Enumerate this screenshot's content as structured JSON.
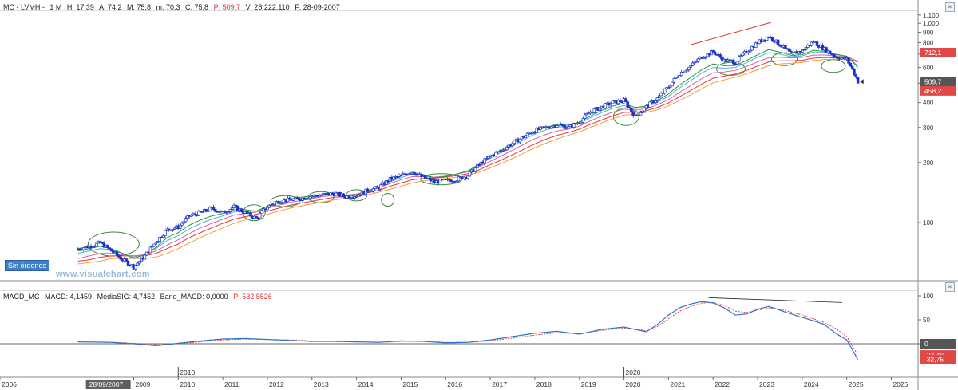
{
  "price_header": {
    "symbol": "MC - LVMH -",
    "period": "1 M",
    "high": "H: 17:39",
    "ask": "A: 74,2",
    "max": "M: 75,8",
    "min": "m: 70,3",
    "close": "C: 75,8",
    "price": "P: 509,7",
    "volume": "V: 28.222.110",
    "date": "F: 28-09-2007"
  },
  "macd_header": {
    "name": "MACD_MC",
    "macd": "MACD: 4,1459",
    "signal": "MediaSIG: 4,7452",
    "band": "Band_MACD: 0,0000",
    "price": "P: 532,8526"
  },
  "orders_button": "Sin órdenes",
  "watermark": "www.visualchart.com",
  "colors": {
    "candles": "#1a33c8",
    "ema_orange": "#f0a040",
    "ema_red": "#e03838",
    "ema_pink": "#e060a0",
    "ema_cyan": "#48b0e8",
    "ema_green": "#2a9a2a",
    "macd_line": "#2f72c8",
    "signal_line": "#e04040",
    "annotation": "#3a8a3a",
    "trendline": "#e03030"
  },
  "chart_data": [
    {
      "type": "candlestick",
      "title": "",
      "scale": "log",
      "ylim": [
        52,
        1150
      ],
      "y_ticks": [
        "1.100",
        "1.000",
        "900",
        "800",
        "700",
        "600",
        "500",
        "400",
        "300",
        "200",
        "100"
      ],
      "x": [
        2007.75,
        2008.0,
        2008.25,
        2008.5,
        2008.75,
        2009.0,
        2009.25,
        2009.5,
        2009.75,
        2010.0,
        2010.25,
        2010.5,
        2010.75,
        2011.0,
        2011.25,
        2011.5,
        2011.75,
        2012.0,
        2012.25,
        2012.5,
        2012.75,
        2013.0,
        2013.25,
        2013.5,
        2013.75,
        2014.0,
        2014.25,
        2014.5,
        2014.75,
        2015.0,
        2015.25,
        2015.5,
        2015.75,
        2016.0,
        2016.25,
        2016.5,
        2016.75,
        2017.0,
        2017.25,
        2017.5,
        2017.75,
        2018.0,
        2018.25,
        2018.5,
        2018.75,
        2019.0,
        2019.25,
        2019.5,
        2019.75,
        2020.0,
        2020.25,
        2020.5,
        2020.75,
        2021.0,
        2021.25,
        2021.5,
        2021.75,
        2022.0,
        2022.25,
        2022.5,
        2022.75,
        2023.0,
        2023.25,
        2023.5,
        2023.75,
        2024.0,
        2024.25,
        2024.5,
        2024.75,
        2025.0,
        2025.25
      ],
      "close": [
        74,
        76,
        79,
        72,
        65,
        60,
        68,
        80,
        92,
        95,
        108,
        112,
        118,
        112,
        120,
        112,
        105,
        120,
        128,
        130,
        132,
        136,
        138,
        140,
        135,
        137,
        145,
        150,
        165,
        172,
        180,
        168,
        160,
        162,
        165,
        172,
        195,
        215,
        230,
        250,
        270,
        290,
        300,
        310,
        300,
        320,
        360,
        380,
        400,
        410,
        340,
        380,
        420,
        480,
        560,
        610,
        680,
        720,
        650,
        640,
        720,
        800,
        860,
        780,
        700,
        730,
        810,
        740,
        680,
        660,
        509.7
      ],
      "series": [
        {
          "name": "",
          "values": [
            62,
            63,
            64,
            66,
            66,
            66,
            66,
            67,
            70,
            74,
            79,
            84,
            89,
            94,
            99,
            103,
            106,
            110,
            114,
            118,
            121,
            124,
            127,
            130,
            132,
            135,
            138,
            142,
            147,
            152,
            158,
            162,
            164,
            166,
            169,
            172,
            179,
            188,
            198,
            210,
            223,
            237,
            250,
            263,
            274,
            285,
            300,
            316,
            332,
            346,
            350,
            357,
            368,
            385,
            410,
            438,
            470,
            502,
            520,
            536,
            558,
            585,
            612,
            625,
            630,
            636,
            650,
            658,
            660,
            658,
            640
          ]
        },
        {
          "name": "",
          "values": [
            64,
            65,
            67,
            68,
            68,
            68,
            68,
            70,
            74,
            78,
            84,
            89,
            94,
            99,
            104,
            107,
            110,
            114,
            118,
            122,
            125,
            128,
            131,
            134,
            135,
            137,
            141,
            145,
            152,
            158,
            164,
            166,
            167,
            169,
            172,
            176,
            184,
            195,
            206,
            219,
            233,
            248,
            262,
            274,
            283,
            294,
            311,
            327,
            343,
            357,
            357,
            364,
            378,
            398,
            428,
            460,
            496,
            530,
            543,
            556,
            580,
            610,
            640,
            648,
            648,
            652,
            668,
            673,
            670,
            665,
            640
          ]
        },
        {
          "name": "",
          "values": [
            66,
            68,
            70,
            70,
            69,
            68,
            69,
            72,
            77,
            82,
            88,
            94,
            99,
            104,
            109,
            111,
            113,
            118,
            122,
            126,
            129,
            132,
            135,
            137,
            137,
            139,
            144,
            149,
            157,
            164,
            170,
            170,
            169,
            171,
            175,
            180,
            190,
            203,
            216,
            231,
            247,
            263,
            277,
            288,
            294,
            305,
            324,
            342,
            358,
            371,
            366,
            373,
            390,
            414,
            450,
            487,
            528,
            564,
            570,
            580,
            607,
            640,
            672,
            675,
            670,
            674,
            692,
            693,
            686,
            678,
            645
          ]
        },
        {
          "name": "",
          "values": [
            70,
            72,
            74,
            73,
            70,
            67,
            69,
            74,
            81,
            86,
            93,
            99,
            104,
            108,
            113,
            114,
            114,
            120,
            125,
            129,
            132,
            134,
            137,
            139,
            137,
            138,
            144,
            150,
            160,
            168,
            175,
            172,
            168,
            170,
            175,
            181,
            194,
            210,
            225,
            242,
            260,
            278,
            292,
            302,
            303,
            314,
            336,
            356,
            374,
            386,
            373,
            379,
            400,
            430,
            474,
            516,
            563,
            600,
            595,
            600,
            634,
            675,
            712,
            700,
            680,
            686,
            718,
            712,
            696,
            682,
            610
          ]
        },
        {
          "name": "",
          "values": [
            72,
            74,
            76,
            74,
            70,
            66,
            69,
            75,
            84,
            89,
            97,
            103,
            108,
            111,
            116,
            116,
            114,
            121,
            127,
            131,
            134,
            136,
            138,
            140,
            137,
            138,
            144,
            151,
            162,
            171,
            179,
            174,
            168,
            170,
            175,
            182,
            196,
            214,
            231,
            249,
            268,
            287,
            301,
            310,
            308,
            319,
            343,
            365,
            384,
            396,
            378,
            384,
            408,
            442,
            490,
            535,
            585,
            625,
            612,
            614,
            650,
            695,
            737,
            717,
            690,
            696,
            732,
            722,
            700,
            683,
            600
          ]
        }
      ],
      "price_labels": [
        "712,1",
        "509,7",
        "458,2"
      ],
      "x_ticks": [
        "2006",
        "2008",
        "2009",
        "2010",
        "2011",
        "2012",
        "2013",
        "2014",
        "2015",
        "2016",
        "2017",
        "2018",
        "2019",
        "2020",
        "2021",
        "2022",
        "2023",
        "2024",
        "2025",
        "2026"
      ],
      "x_highlight": [
        "2010",
        "2020"
      ],
      "cursor_label": "28/09/2007"
    },
    {
      "type": "line",
      "title": "",
      "ylim": [
        -65,
        110
      ],
      "y_ticks": [
        "100",
        "50",
        "0"
      ],
      "x": [
        2007.75,
        2008.5,
        2009.0,
        2009.5,
        2010.0,
        2010.5,
        2011.0,
        2011.5,
        2012.0,
        2012.5,
        2013.0,
        2013.5,
        2014.0,
        2014.5,
        2015.0,
        2015.5,
        2016.0,
        2016.5,
        2017.0,
        2017.5,
        2018.0,
        2018.5,
        2019.0,
        2019.5,
        2020.0,
        2020.25,
        2020.5,
        2020.75,
        2021.0,
        2021.25,
        2021.5,
        2021.75,
        2022.0,
        2022.25,
        2022.5,
        2022.75,
        2023.0,
        2023.25,
        2023.5,
        2023.75,
        2024.0,
        2024.25,
        2024.5,
        2024.75,
        2025.0,
        2025.25
      ],
      "series": [
        {
          "name": "MACD",
          "values": [
            4,
            3,
            0,
            -4,
            1,
            6,
            10,
            11,
            9,
            7,
            5,
            5,
            4,
            3,
            6,
            5,
            2,
            3,
            8,
            15,
            22,
            26,
            20,
            30,
            35,
            30,
            25,
            40,
            60,
            75,
            83,
            88,
            85,
            75,
            60,
            62,
            72,
            78,
            70,
            62,
            55,
            48,
            40,
            22,
            8,
            -32.75
          ]
        },
        {
          "name": "MediaSIG",
          "values": [
            4,
            3,
            1,
            -2,
            0,
            4,
            8,
            10,
            9,
            8,
            6,
            5,
            4,
            3,
            5,
            5,
            3,
            3,
            6,
            12,
            18,
            23,
            21,
            28,
            33,
            31,
            27,
            36,
            52,
            68,
            78,
            85,
            86,
            80,
            68,
            65,
            70,
            75,
            72,
            66,
            60,
            52,
            44,
            32,
            15,
            -23.48
          ]
        }
      ],
      "value_labels": [
        "0",
        "-23,48",
        "-32,75"
      ],
      "x_ticks": [
        "2006",
        "2008",
        "2009",
        "2010",
        "2011",
        "2012",
        "2013",
        "2014",
        "2015",
        "2016",
        "2017",
        "2018",
        "2019",
        "2020",
        "2021",
        "2022",
        "2023",
        "2024",
        "2025",
        "2026"
      ]
    }
  ]
}
